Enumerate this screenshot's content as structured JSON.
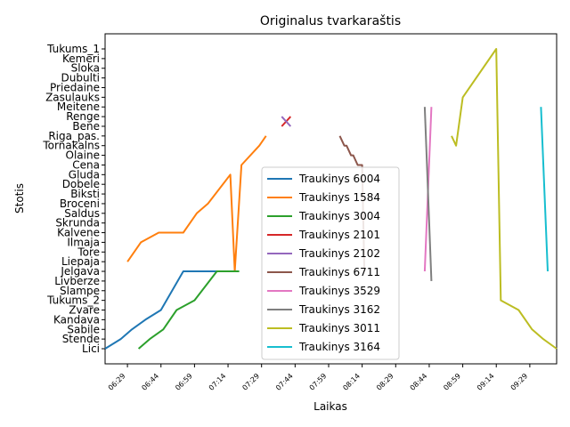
{
  "chart_data": {
    "type": "line",
    "title": "Originalus tvarkaraštis",
    "xlabel": "Laikas",
    "ylabel": "Stotis",
    "x_ticks": [
      "06:29",
      "06:44",
      "06:59",
      "07:14",
      "07:29",
      "07:44",
      "07:59",
      "08:14",
      "08:29",
      "08:44",
      "08:59",
      "09:14",
      "09:29"
    ],
    "xlim": [
      "06:19",
      "09:41"
    ],
    "stations": [
      "Lici",
      "Stende",
      "Sabile",
      "Kandava",
      "Zvare",
      "Tukums_2",
      "Slampe",
      "Livberze",
      "Jelgava",
      "Liepaja",
      "Tore",
      "Ilmaja",
      "Kalvene",
      "Skrunda",
      "Saldus",
      "Broceni",
      "Biksti",
      "Dobele",
      "Gluda",
      "Cena",
      "Olaine",
      "Tornakalns",
      "Riga_pas.",
      "Bene",
      "Renge",
      "Meitene",
      "Zasulauks",
      "Priedaine",
      "Dubulti",
      "Sloka",
      "Kemeri",
      "Tukums_1"
    ],
    "legend_position": "center",
    "grid": false,
    "series": [
      {
        "name": "Traukinys 6004",
        "color": "#1f77b4",
        "points": [
          [
            "06:19",
            "Lici"
          ],
          [
            "06:26",
            "Stende"
          ],
          [
            "06:31",
            "Sabile"
          ],
          [
            "06:37",
            "Kandava"
          ],
          [
            "06:44",
            "Zvare"
          ],
          [
            "06:54",
            "Jelgava"
          ],
          [
            "07:09",
            "Jelgava"
          ]
        ]
      },
      {
        "name": "Traukinys 1584",
        "color": "#ff7f0e",
        "points": [
          [
            "06:29",
            "Liepaja"
          ],
          [
            "06:35",
            "Ilmaja"
          ],
          [
            "06:43",
            "Kalvene"
          ],
          [
            "06:54",
            "Kalvene"
          ],
          [
            "07:00",
            "Saldus"
          ],
          [
            "07:05",
            "Broceni"
          ],
          [
            "07:15",
            "Gluda"
          ],
          [
            "07:17",
            "Jelgava"
          ],
          [
            "07:20",
            "Cena"
          ],
          [
            "07:28",
            "Tornakalns"
          ],
          [
            "07:31",
            "Riga_pas."
          ]
        ]
      },
      {
        "name": "Traukinys 3004",
        "color": "#2ca02c",
        "points": [
          [
            "06:34",
            "Lici"
          ],
          [
            "06:39",
            "Stende"
          ],
          [
            "06:45",
            "Sabile"
          ],
          [
            "06:51",
            "Zvare"
          ],
          [
            "06:59",
            "Tukums_2"
          ],
          [
            "07:09",
            "Jelgava"
          ],
          [
            "07:19",
            "Jelgava"
          ]
        ]
      },
      {
        "name": "Traukinys 2101",
        "color": "#d62728",
        "points": [
          [
            "07:38",
            "Bene"
          ],
          [
            "07:42",
            "Renge"
          ]
        ]
      },
      {
        "name": "Traukinys 2102",
        "color": "#9467bd",
        "points": [
          [
            "07:38",
            "Renge"
          ],
          [
            "07:42",
            "Bene"
          ]
        ]
      },
      {
        "name": "Traukinys 6711",
        "color": "#8c564b",
        "points": [
          [
            "08:04",
            "Riga_pas."
          ],
          [
            "08:06",
            "Tornakalns"
          ],
          [
            "08:07",
            "Tornakalns"
          ],
          [
            "08:09",
            "Olaine"
          ],
          [
            "08:10",
            "Olaine"
          ],
          [
            "08:12",
            "Cena"
          ],
          [
            "08:14",
            "Cena"
          ],
          [
            "08:15",
            "Jelgava"
          ]
        ]
      },
      {
        "name": "Traukinys 3529",
        "color": "#e377c2",
        "points": [
          [
            "08:42",
            "Jelgava"
          ],
          [
            "08:45",
            "Meitene"
          ]
        ]
      },
      {
        "name": "Traukinys 3162",
        "color": "#7f7f7f",
        "points": [
          [
            "08:42",
            "Meitene"
          ],
          [
            "08:45",
            "Livberze"
          ]
        ]
      },
      {
        "name": "Traukinys 3011",
        "color": "#bcbd22",
        "points": [
          [
            "08:54",
            "Riga_pas."
          ],
          [
            "08:56",
            "Tornakalns"
          ],
          [
            "08:59",
            "Zasulauks"
          ],
          [
            "09:14",
            "Tukums_1"
          ],
          [
            "09:16",
            "Tukums_2"
          ],
          [
            "09:24",
            "Zvare"
          ],
          [
            "09:30",
            "Sabile"
          ],
          [
            "09:35",
            "Stende"
          ],
          [
            "09:41",
            "Lici"
          ]
        ]
      },
      {
        "name": "Traukinys 3164",
        "color": "#17becf",
        "points": [
          [
            "09:34",
            "Meitene"
          ],
          [
            "09:37",
            "Jelgava"
          ]
        ]
      }
    ]
  }
}
